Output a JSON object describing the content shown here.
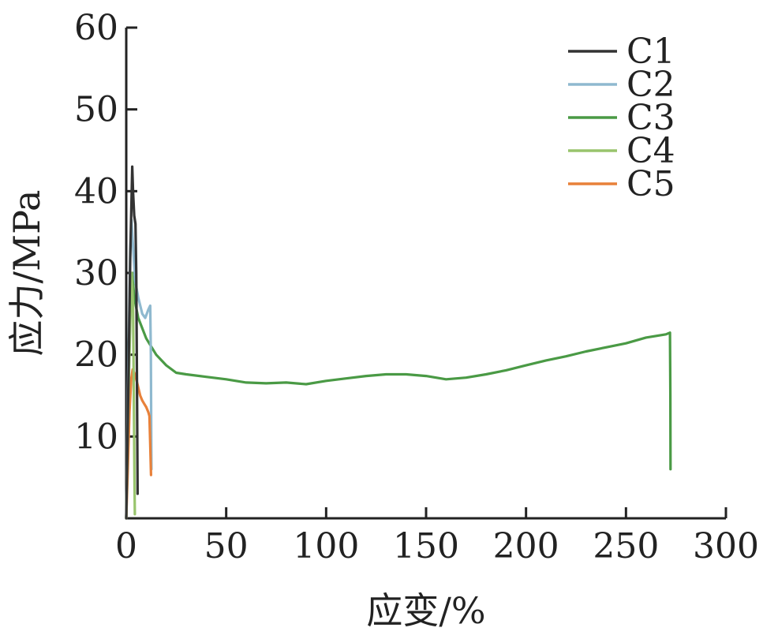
{
  "chart_data": {
    "type": "line",
    "title": "",
    "xlabel": "应变/%",
    "ylabel": "应力/MPa",
    "xlim": [
      0,
      300
    ],
    "ylim": [
      0,
      60
    ],
    "x_ticks": [
      0,
      50,
      100,
      150,
      200,
      250,
      300
    ],
    "y_ticks": [
      10,
      20,
      30,
      40,
      50,
      60
    ],
    "grid": false,
    "legend": "top-right",
    "series": [
      {
        "name": "C1",
        "color": "#333333",
        "points": [
          [
            0,
            0
          ],
          [
            1,
            15
          ],
          [
            2,
            32
          ],
          [
            3,
            43
          ],
          [
            3.4,
            40
          ],
          [
            4,
            37
          ],
          [
            4.6,
            36
          ],
          [
            5,
            30
          ],
          [
            5.4,
            15
          ],
          [
            5.7,
            3
          ]
        ]
      },
      {
        "name": "C2",
        "color": "#8fb9cf",
        "points": [
          [
            0,
            0
          ],
          [
            1,
            18
          ],
          [
            2,
            33
          ],
          [
            2.6,
            36.5
          ],
          [
            3.2,
            34
          ],
          [
            4.5,
            29
          ],
          [
            6,
            27
          ],
          [
            8,
            25
          ],
          [
            9.5,
            24.5
          ],
          [
            11,
            25.5
          ],
          [
            12,
            26
          ],
          [
            12.3,
            20
          ],
          [
            12.5,
            10
          ],
          [
            12.6,
            6
          ]
        ]
      },
      {
        "name": "C3",
        "color": "#4a9a45",
        "points": [
          [
            0,
            0
          ],
          [
            1,
            15
          ],
          [
            2,
            25
          ],
          [
            3,
            30
          ],
          [
            4,
            27
          ],
          [
            6,
            24.5
          ],
          [
            10,
            22
          ],
          [
            15,
            20
          ],
          [
            20,
            18.7
          ],
          [
            25,
            17.8
          ],
          [
            30,
            17.6
          ],
          [
            40,
            17.3
          ],
          [
            50,
            17
          ],
          [
            60,
            16.6
          ],
          [
            70,
            16.5
          ],
          [
            80,
            16.6
          ],
          [
            90,
            16.4
          ],
          [
            100,
            16.8
          ],
          [
            110,
            17.1
          ],
          [
            120,
            17.4
          ],
          [
            130,
            17.6
          ],
          [
            140,
            17.6
          ],
          [
            150,
            17.4
          ],
          [
            160,
            17
          ],
          [
            170,
            17.2
          ],
          [
            180,
            17.6
          ],
          [
            190,
            18.1
          ],
          [
            200,
            18.7
          ],
          [
            210,
            19.3
          ],
          [
            220,
            19.8
          ],
          [
            230,
            20.4
          ],
          [
            240,
            20.9
          ],
          [
            250,
            21.4
          ],
          [
            260,
            22.1
          ],
          [
            270,
            22.5
          ],
          [
            272,
            22.7
          ],
          [
            272.2,
            15
          ],
          [
            272.3,
            6
          ]
        ]
      },
      {
        "name": "C4",
        "color": "#98c46c",
        "points": [
          [
            0,
            0
          ],
          [
            1,
            14
          ],
          [
            2,
            24
          ],
          [
            2.7,
            30
          ],
          [
            3.4,
            26
          ],
          [
            3.8,
            15
          ],
          [
            4.1,
            5
          ],
          [
            4.3,
            0.5
          ]
        ]
      },
      {
        "name": "C5",
        "color": "#e8813a",
        "points": [
          [
            0,
            0
          ],
          [
            0.8,
            6
          ],
          [
            1.6,
            13
          ],
          [
            2.5,
            17
          ],
          [
            3.2,
            18.2
          ],
          [
            4,
            17.8
          ],
          [
            5,
            17
          ],
          [
            6,
            16
          ],
          [
            7,
            15
          ],
          [
            8,
            14.4
          ],
          [
            9,
            14
          ],
          [
            10,
            13.6
          ],
          [
            11,
            13
          ],
          [
            11.6,
            12.5
          ],
          [
            12,
            9
          ],
          [
            12.3,
            6
          ],
          [
            12.4,
            5.3
          ]
        ]
      }
    ]
  }
}
